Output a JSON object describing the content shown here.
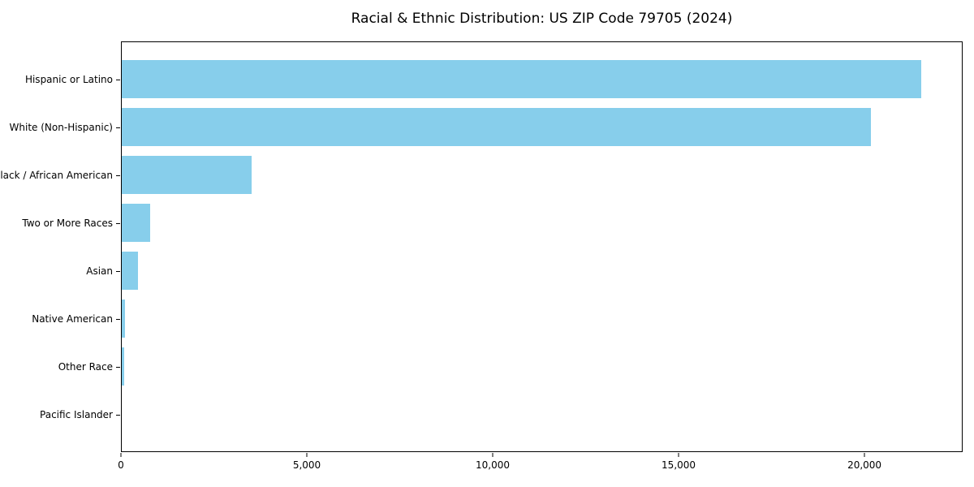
{
  "title": "Racial & Ethnic Distribution: US ZIP Code 79705 (2024)",
  "chart_data": {
    "type": "bar",
    "orientation": "horizontal",
    "title": "Racial & Ethnic Distribution: US ZIP Code 79705 (2024)",
    "categories": [
      "Hispanic or Latino",
      "White (Non-Hispanic)",
      "Black / African American",
      "Two or More Races",
      "Asian",
      "Native American",
      "Other Race",
      "Pacific Islander"
    ],
    "values": [
      21550,
      20180,
      3510,
      765,
      435,
      85,
      60,
      0
    ],
    "xlabel": "",
    "ylabel": "",
    "xlim": [
      0,
      22640
    ],
    "x_ticks": [
      0,
      5000,
      10000,
      15000,
      20000
    ],
    "x_tick_labels": [
      "0",
      "5,000",
      "10,000",
      "15,000",
      "20,000"
    ],
    "bar_color": "#87CEEB",
    "axis_color": "#000000",
    "background_color": "#ffffff",
    "grid": false,
    "legend": "none"
  }
}
